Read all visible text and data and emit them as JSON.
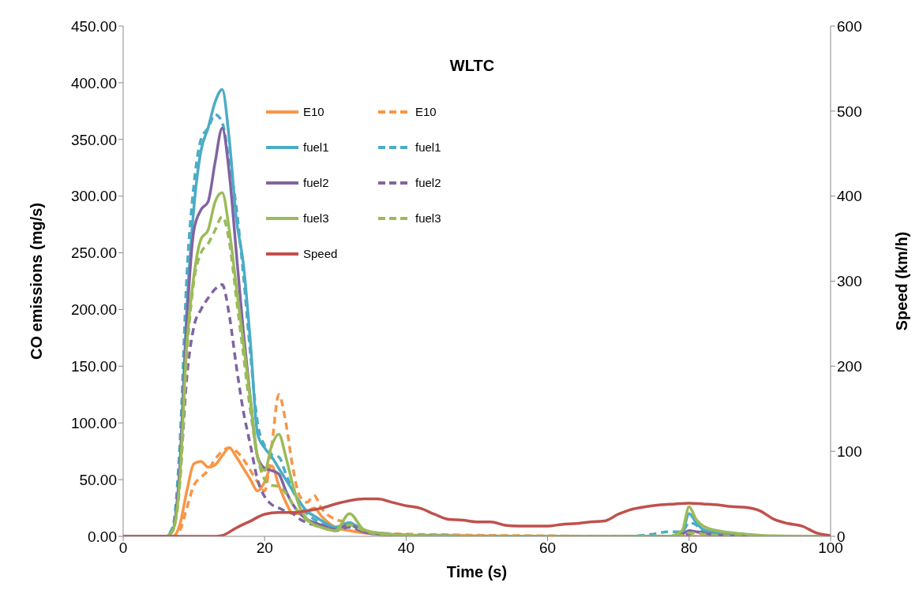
{
  "chart_data": {
    "type": "line",
    "title": "WLTC",
    "xlabel": "Time (s)",
    "ylabel": "CO emissions (mg/s)",
    "y2label": "Speed (km/h)",
    "xlim": [
      0,
      100
    ],
    "xticks": [
      0,
      20,
      40,
      60,
      80,
      100
    ],
    "ylim": [
      0,
      450
    ],
    "yticks": [
      {
        "value": 0,
        "label": "0.00"
      },
      {
        "value": 50,
        "label": "50.00"
      },
      {
        "value": 100,
        "label": "100.00"
      },
      {
        "value": 150,
        "label": "150.00"
      },
      {
        "value": 200,
        "label": "200.00"
      },
      {
        "value": 250,
        "label": "250.00"
      },
      {
        "value": 300,
        "label": "300.00"
      },
      {
        "value": 350,
        "label": "350.00"
      },
      {
        "value": 400,
        "label": "400.00"
      },
      {
        "value": 450,
        "label": "450.00"
      }
    ],
    "y2lim": [
      0,
      600
    ],
    "y2ticks": [
      0,
      100,
      200,
      300,
      400,
      500,
      600
    ],
    "grid": false,
    "legend": "top",
    "marker": "none",
    "series": [
      {
        "name": "E10",
        "color": "#f79646",
        "line_style": "solid",
        "x": [
          6,
          7,
          8,
          9,
          10,
          11,
          12,
          13,
          14,
          15,
          16,
          17,
          18,
          19,
          20,
          21,
          22,
          23,
          24,
          25,
          26,
          27,
          28,
          30,
          32,
          34,
          36,
          40,
          45,
          50,
          60,
          70,
          80,
          90,
          100
        ],
        "values": [
          0,
          0,
          10,
          40,
          64,
          66,
          61,
          63,
          71,
          78,
          70,
          60,
          50,
          40,
          48,
          62,
          45,
          30,
          20,
          20,
          22,
          25,
          18,
          8,
          5,
          3,
          2,
          1,
          1,
          0.5,
          0,
          0,
          0,
          0,
          0
        ]
      },
      {
        "name": "E10",
        "color": "#f79646",
        "line_style": "dashed",
        "x": [
          0,
          5,
          6,
          7,
          8,
          9,
          10,
          11,
          12,
          13,
          14,
          15,
          16,
          17,
          18,
          19,
          20,
          21,
          22,
          23,
          24,
          25,
          26,
          27,
          28,
          30,
          32,
          34,
          36,
          40,
          45,
          50,
          60,
          70,
          80,
          90,
          100
        ],
        "values": [
          0,
          0,
          0,
          0,
          5,
          25,
          45,
          52,
          58,
          68,
          75,
          78,
          75,
          68,
          58,
          48,
          40,
          80,
          125,
          100,
          60,
          35,
          30,
          36,
          25,
          15,
          12,
          5,
          3,
          2,
          1.5,
          1,
          0.5,
          0,
          0,
          0,
          0
        ]
      },
      {
        "name": "fuel1",
        "color": "#4bacc6",
        "line_style": "solid",
        "x": [
          0,
          5,
          6,
          7,
          8,
          9,
          10,
          11,
          12,
          13,
          14,
          15,
          16,
          17,
          18,
          19,
          20,
          21,
          22,
          23,
          24,
          25,
          26,
          27,
          28,
          30,
          32,
          34,
          36,
          40,
          45,
          50,
          60,
          70,
          75,
          77,
          79,
          80,
          81,
          82,
          84,
          88,
          92,
          100
        ],
        "values": [
          0,
          0,
          0,
          5,
          60,
          200,
          290,
          340,
          360,
          383,
          394,
          350,
          280,
          240,
          170,
          90,
          78,
          70,
          60,
          50,
          40,
          30,
          22,
          18,
          14,
          8,
          12,
          5,
          3,
          1,
          0.5,
          0,
          0,
          0,
          0,
          0,
          3,
          20,
          12,
          6,
          3,
          1,
          0,
          0
        ]
      },
      {
        "name": "fuel1",
        "color": "#4bacc6",
        "line_style": "dashed",
        "x": [
          0,
          5,
          6,
          7,
          8,
          9,
          10,
          11,
          12,
          13,
          14,
          15,
          16,
          17,
          18,
          19,
          20,
          21,
          22,
          23,
          24,
          25,
          26,
          27,
          28,
          30,
          32,
          34,
          36,
          40,
          45,
          50,
          60,
          70,
          75,
          77,
          79,
          80,
          81,
          82,
          84,
          88,
          92,
          100
        ],
        "values": [
          0,
          0,
          0,
          8,
          80,
          230,
          310,
          350,
          360,
          372,
          365,
          330,
          290,
          230,
          160,
          100,
          80,
          72,
          70,
          55,
          40,
          28,
          20,
          15,
          12,
          8,
          12,
          5,
          3,
          1,
          0.5,
          0,
          0,
          0,
          2,
          4,
          4,
          12,
          10,
          4,
          2,
          0.5,
          0,
          0
        ]
      },
      {
        "name": "fuel2",
        "color": "#8064a2",
        "line_style": "solid",
        "x": [
          0,
          5,
          6,
          7,
          8,
          9,
          10,
          11,
          12,
          13,
          14,
          15,
          16,
          17,
          18,
          19,
          20,
          21,
          22,
          23,
          24,
          25,
          26,
          27,
          28,
          30,
          32,
          34,
          36,
          40,
          45,
          50,
          60,
          70,
          75,
          77,
          79,
          80,
          81,
          82,
          84,
          88,
          92,
          100
        ],
        "values": [
          0,
          0,
          0,
          5,
          60,
          190,
          270,
          288,
          295,
          330,
          360,
          320,
          250,
          180,
          120,
          70,
          60,
          58,
          55,
          40,
          28,
          20,
          15,
          12,
          10,
          6,
          10,
          4,
          2,
          1,
          0.3,
          0,
          0,
          0,
          0,
          0,
          2,
          5,
          4,
          3,
          1,
          0,
          0,
          0
        ]
      },
      {
        "name": "fuel2",
        "color": "#8064a2",
        "line_style": "dashed",
        "x": [
          0,
          5,
          6,
          7,
          8,
          9,
          10,
          11,
          12,
          13,
          14,
          15,
          16,
          17,
          18,
          19,
          20,
          21,
          22,
          23,
          24,
          25,
          26,
          27,
          28,
          30,
          32,
          34,
          36,
          40,
          45,
          50,
          60,
          70,
          75,
          77,
          79,
          80,
          81,
          82,
          84,
          88,
          92,
          100
        ],
        "values": [
          0,
          0,
          0,
          5,
          50,
          140,
          185,
          200,
          210,
          218,
          222,
          195,
          150,
          110,
          80,
          50,
          35,
          28,
          25,
          22,
          20,
          15,
          12,
          10,
          8,
          5,
          8,
          4,
          2,
          0.5,
          0,
          0,
          0,
          0,
          0,
          0,
          1,
          2,
          4,
          3,
          1,
          0,
          0,
          0
        ]
      },
      {
        "name": "fuel3",
        "color": "#9bbb59",
        "line_style": "solid",
        "x": [
          0,
          5,
          6,
          7,
          8,
          9,
          10,
          11,
          12,
          13,
          14,
          15,
          16,
          17,
          18,
          19,
          20,
          21,
          22,
          23,
          24,
          25,
          26,
          27,
          28,
          30,
          32,
          34,
          36,
          40,
          45,
          50,
          60,
          70,
          75,
          77,
          79,
          80,
          81,
          82,
          84,
          88,
          92,
          100
        ],
        "values": [
          0,
          0,
          0,
          5,
          50,
          170,
          230,
          262,
          270,
          295,
          303,
          270,
          220,
          170,
          120,
          70,
          58,
          80,
          90,
          70,
          45,
          25,
          15,
          10,
          8,
          5,
          20,
          6,
          3,
          1,
          0.5,
          0,
          0,
          0,
          0,
          0,
          5,
          26,
          15,
          9,
          5,
          2,
          0.5,
          0
        ]
      },
      {
        "name": "fuel3",
        "color": "#9bbb59",
        "line_style": "dashed",
        "x": [
          0,
          5,
          6,
          7,
          8,
          9,
          10,
          11,
          12,
          13,
          14,
          15,
          16,
          17,
          18,
          19,
          20,
          21,
          22,
          23,
          24,
          25,
          26,
          27,
          28,
          30,
          32,
          34,
          36,
          40,
          45,
          50,
          60,
          70,
          75,
          77,
          79,
          80,
          81,
          82,
          84,
          88,
          92,
          100
        ],
        "values": [
          0,
          0,
          0,
          5,
          45,
          160,
          225,
          250,
          258,
          270,
          282,
          260,
          210,
          160,
          110,
          70,
          50,
          45,
          44,
          38,
          28,
          20,
          14,
          10,
          8,
          5,
          10,
          5,
          2,
          0.5,
          0,
          0,
          0,
          0,
          0,
          0,
          1,
          3,
          3,
          2,
          1,
          0,
          0,
          0
        ]
      },
      {
        "name": "Speed",
        "color": "#c0504d",
        "line_style": "solid",
        "axis": "y2",
        "x": [
          0,
          13,
          14,
          16,
          18,
          20,
          22,
          24,
          26,
          28,
          30,
          32,
          34,
          36,
          38,
          40,
          42,
          44,
          46,
          48,
          50,
          52,
          54,
          56,
          60,
          62,
          64,
          66,
          68,
          70,
          72,
          74,
          76,
          78,
          80,
          82,
          84,
          86,
          88,
          90,
          92,
          94,
          96,
          98,
          100
        ],
        "values": [
          0,
          0,
          1,
          10,
          18,
          26,
          28,
          28,
          30,
          33,
          38,
          42,
          44,
          44,
          40,
          36,
          33,
          26,
          20,
          19,
          17,
          17,
          13,
          12,
          12,
          14,
          15,
          17,
          18,
          26,
          32,
          35,
          37,
          38,
          39,
          38,
          37,
          35,
          34,
          30,
          20,
          15,
          12,
          4,
          1
        ]
      }
    ]
  }
}
